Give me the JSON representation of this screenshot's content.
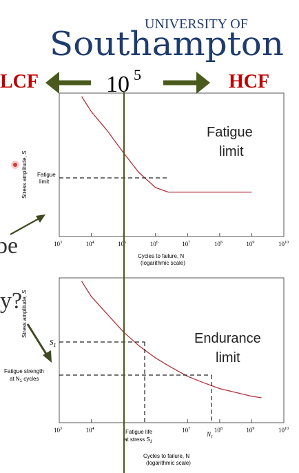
{
  "logo": {
    "line1": "UNIVERSITY OF",
    "line2": "Southampton",
    "color": "#1f3c6e"
  },
  "header": {
    "lcf": "LCF",
    "hcf": "HCF",
    "center_base": "10",
    "center_exp": "5",
    "lcf_color": "#c00000",
    "hcf_color": "#c00000",
    "arrow_color": "#4a5a1c"
  },
  "side_fragments": {
    "be": "be",
    "y": "y?"
  },
  "top_chart": {
    "ylabel_main": "Stress amplitude, ",
    "ylabel_var": "S",
    "marker_label": "Fatigue limit",
    "annotation_line1": "Fatigue",
    "annotation_line2": "limit",
    "xlabel_line1": "Cycles to failure, N",
    "xlabel_line2": "(logarithmic scale)",
    "tick_exponents": [
      "3",
      "4",
      "5",
      "6",
      "7",
      "8",
      "9",
      "10"
    ],
    "curve_color": "#b0303a"
  },
  "bottom_chart": {
    "ylabel_main": "Stress amplitude, ",
    "ylabel_var": "S",
    "s1_label": "S",
    "s1_sub": "1",
    "strength_line1": "Fatigue strength",
    "strength_line2": "at N",
    "strength_sub": "1",
    "strength_line3": " cycles",
    "annotation_line1": "Endurance",
    "annotation_line2": "limit",
    "life_line1": "Fatigue life",
    "life_line2": "at stress S",
    "life_sub": "1",
    "n1_label": "N",
    "n1_sub": "1",
    "xlabel_line1": "Cycles to failure, N",
    "xlabel_line2": "(logarithmic scale)",
    "tick_exponents": [
      "3",
      "4",
      "7",
      "8",
      "9",
      "10"
    ],
    "curve_color": "#b0303a"
  },
  "divider_color": "#4a5a1c",
  "cursor_color": "#d83838",
  "chart_data": [
    {
      "type": "line",
      "title": "",
      "xlabel": "Cycles to failure, N (logarithmic scale)",
      "ylabel": "Stress amplitude, S",
      "x_scale": "log",
      "xlim": [
        1000,
        10000000000
      ],
      "series": [
        {
          "x": [
            5000,
            10000,
            30000,
            100000,
            300000,
            1000000,
            2500000,
            10000000,
            100000000,
            1000000000
          ],
          "y": [
            1.0,
            0.9,
            0.78,
            0.63,
            0.5,
            0.4,
            0.37,
            0.37,
            0.37,
            0.37
          ]
        }
      ],
      "annotations": [
        "Fatigue limit"
      ]
    },
    {
      "type": "line",
      "title": "",
      "xlabel": "Cycles to failure, N (logarithmic scale)",
      "ylabel": "Stress amplitude, S",
      "x_scale": "log",
      "xlim": [
        1000,
        10000000000
      ],
      "series": [
        {
          "x": [
            5000,
            10000,
            30000,
            100000,
            300000,
            1000000,
            3000000,
            10000000,
            30000000,
            100000000,
            1000000000,
            2000000000
          ],
          "y": [
            1.0,
            0.9,
            0.79,
            0.67,
            0.58,
            0.5,
            0.44,
            0.38,
            0.34,
            0.3,
            0.25,
            0.24
          ]
        }
      ],
      "annotations": [
        "Endurance limit"
      ]
    }
  ]
}
